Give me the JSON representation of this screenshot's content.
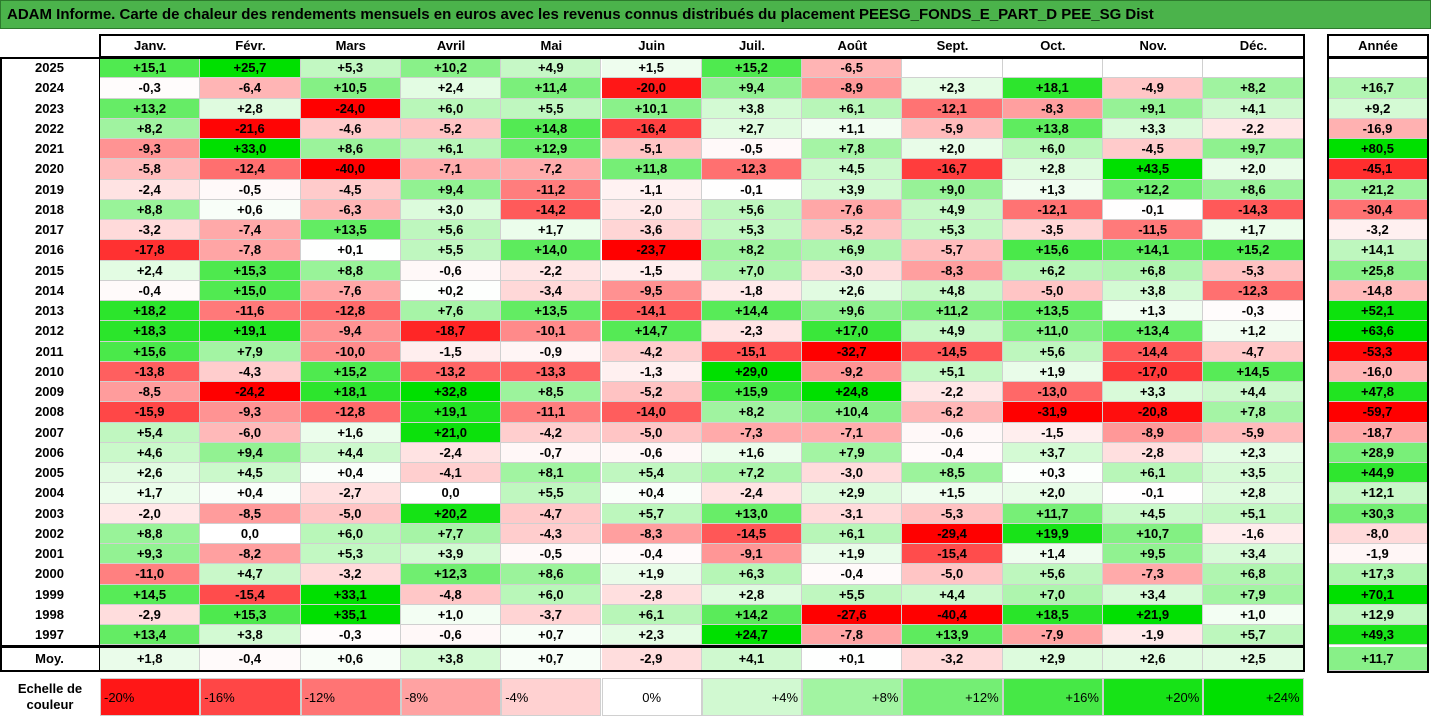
{
  "title": "ADAM Informe. Carte de chaleur des rendements mensuels en euros avec les revenus connus distribués du placement PEESG_FONDS_E_PART_D PEE_SG Dist",
  "chart_data": {
    "type": "heatmap",
    "columns": [
      "Janv.",
      "Févr.",
      "Mars",
      "Avril",
      "Mai",
      "Juin",
      "Juil.",
      "Août",
      "Sept.",
      "Oct.",
      "Nov.",
      "Déc."
    ],
    "annual_header": "Année",
    "rows": [
      {
        "year": "2025",
        "values": [
          "+15,1",
          "+25,7",
          "+5,3",
          "+10,2",
          "+4,9",
          "+1,5",
          "+15,2",
          "-6,5",
          "",
          "",
          "",
          ""
        ],
        "annual": ""
      },
      {
        "year": "2024",
        "values": [
          "-0,3",
          "-6,4",
          "+10,5",
          "+2,4",
          "+11,4",
          "-20,0",
          "+9,4",
          "-8,9",
          "+2,3",
          "+18,1",
          "-4,9",
          "+8,2"
        ],
        "annual": "+16,7"
      },
      {
        "year": "2023",
        "values": [
          "+13,2",
          "+2,8",
          "-24,0",
          "+6,0",
          "+5,5",
          "+10,1",
          "+3,8",
          "+6,1",
          "-12,1",
          "-8,3",
          "+9,1",
          "+4,1"
        ],
        "annual": "+9,2"
      },
      {
        "year": "2022",
        "values": [
          "+8,2",
          "-21,6",
          "-4,6",
          "-5,2",
          "+14,8",
          "-16,4",
          "+2,7",
          "+1,1",
          "-5,9",
          "+13,8",
          "+3,3",
          "-2,2"
        ],
        "annual": "-16,9"
      },
      {
        "year": "2021",
        "values": [
          "-9,3",
          "+33,0",
          "+8,6",
          "+6,1",
          "+12,9",
          "-5,1",
          "-0,5",
          "+7,8",
          "+2,0",
          "+6,0",
          "-4,5",
          "+9,7"
        ],
        "annual": "+80,5"
      },
      {
        "year": "2020",
        "values": [
          "-5,8",
          "-12,4",
          "-40,0",
          "-7,1",
          "-7,2",
          "+11,8",
          "-12,3",
          "+4,5",
          "-16,7",
          "+2,8",
          "+43,5",
          "+2,0"
        ],
        "annual": "-45,1"
      },
      {
        "year": "2019",
        "values": [
          "-2,4",
          "-0,5",
          "-4,5",
          "+9,4",
          "-11,2",
          "-1,1",
          "-0,1",
          "+3,9",
          "+9,0",
          "+1,3",
          "+12,2",
          "+8,6"
        ],
        "annual": "+21,2"
      },
      {
        "year": "2018",
        "values": [
          "+8,8",
          "+0,6",
          "-6,3",
          "+3,0",
          "-14,2",
          "-2,0",
          "+5,6",
          "-7,6",
          "+4,9",
          "-12,1",
          "-0,1",
          "-14,3"
        ],
        "annual": "-30,4"
      },
      {
        "year": "2017",
        "values": [
          "-3,2",
          "-7,4",
          "+13,5",
          "+5,6",
          "+1,7",
          "-3,6",
          "+5,3",
          "-5,2",
          "+5,3",
          "-3,5",
          "-11,5",
          "+1,7"
        ],
        "annual": "-3,2"
      },
      {
        "year": "2016",
        "values": [
          "-17,8",
          "-7,8",
          "+0,1",
          "+5,5",
          "+14,0",
          "-23,7",
          "+8,2",
          "+6,9",
          "-5,7",
          "+15,6",
          "+14,1",
          "+15,2"
        ],
        "annual": "+14,1"
      },
      {
        "year": "2015",
        "values": [
          "+2,4",
          "+15,3",
          "+8,8",
          "-0,6",
          "-2,2",
          "-1,5",
          "+7,0",
          "-3,0",
          "-8,3",
          "+6,2",
          "+6,8",
          "-5,3"
        ],
        "annual": "+25,8"
      },
      {
        "year": "2014",
        "values": [
          "-0,4",
          "+15,0",
          "-7,6",
          "+0,2",
          "-3,4",
          "-9,5",
          "-1,8",
          "+2,6",
          "+4,8",
          "-5,0",
          "+3,8",
          "-12,3"
        ],
        "annual": "-14,8"
      },
      {
        "year": "2013",
        "values": [
          "+18,2",
          "-11,6",
          "-12,8",
          "+7,6",
          "+13,5",
          "-14,1",
          "+14,4",
          "+9,6",
          "+11,2",
          "+13,5",
          "+1,3",
          "-0,3"
        ],
        "annual": "+52,1"
      },
      {
        "year": "2012",
        "values": [
          "+18,3",
          "+19,1",
          "-9,4",
          "-18,7",
          "-10,1",
          "+14,7",
          "-2,3",
          "+17,0",
          "+4,9",
          "+11,0",
          "+13,4",
          "+1,2"
        ],
        "annual": "+63,6"
      },
      {
        "year": "2011",
        "values": [
          "+15,6",
          "+7,9",
          "-10,0",
          "-1,5",
          "-0,9",
          "-4,2",
          "-15,1",
          "-32,7",
          "-14,5",
          "+5,6",
          "-14,4",
          "-4,7"
        ],
        "annual": "-53,3"
      },
      {
        "year": "2010",
        "values": [
          "-13,8",
          "-4,3",
          "+15,2",
          "-13,2",
          "-13,3",
          "-1,3",
          "+29,0",
          "-9,2",
          "+5,1",
          "+1,9",
          "-17,0",
          "+14,5"
        ],
        "annual": "-16,0"
      },
      {
        "year": "2009",
        "values": [
          "-8,5",
          "-24,2",
          "+18,1",
          "+32,8",
          "+8,5",
          "-5,2",
          "+15,9",
          "+24,8",
          "-2,2",
          "-13,0",
          "+3,3",
          "+4,4"
        ],
        "annual": "+47,8"
      },
      {
        "year": "2008",
        "values": [
          "-15,9",
          "-9,3",
          "-12,8",
          "+19,1",
          "-11,1",
          "-14,0",
          "+8,2",
          "+10,4",
          "-6,2",
          "-31,9",
          "-20,8",
          "+7,8"
        ],
        "annual": "-59,7"
      },
      {
        "year": "2007",
        "values": [
          "+5,4",
          "-6,0",
          "+1,6",
          "+21,0",
          "-4,2",
          "-5,0",
          "-7,3",
          "-7,1",
          "-0,6",
          "-1,5",
          "-8,9",
          "-5,9"
        ],
        "annual": "-18,7"
      },
      {
        "year": "2006",
        "values": [
          "+4,6",
          "+9,4",
          "+4,4",
          "-2,4",
          "-0,7",
          "-0,6",
          "+1,6",
          "+7,9",
          "-0,4",
          "+3,7",
          "-2,8",
          "+2,3"
        ],
        "annual": "+28,9"
      },
      {
        "year": "2005",
        "values": [
          "+2,6",
          "+4,5",
          "+0,4",
          "-4,1",
          "+8,1",
          "+5,4",
          "+7,2",
          "-3,0",
          "+8,5",
          "+0,3",
          "+6,1",
          "+3,5"
        ],
        "annual": "+44,9"
      },
      {
        "year": "2004",
        "values": [
          "+1,7",
          "+0,4",
          "-2,7",
          "0,0",
          "+5,5",
          "+0,4",
          "-2,4",
          "+2,9",
          "+1,5",
          "+2,0",
          "-0,1",
          "+2,8"
        ],
        "annual": "+12,1"
      },
      {
        "year": "2003",
        "values": [
          "-2,0",
          "-8,5",
          "-5,0",
          "+20,2",
          "-4,7",
          "+5,7",
          "+13,0",
          "-3,1",
          "-5,3",
          "+11,7",
          "+4,5",
          "+5,1"
        ],
        "annual": "+30,3"
      },
      {
        "year": "2002",
        "values": [
          "+8,8",
          "0,0",
          "+6,0",
          "+7,7",
          "-4,3",
          "-8,3",
          "-14,5",
          "+6,1",
          "-29,4",
          "+19,9",
          "+10,7",
          "-1,6"
        ],
        "annual": "-8,0"
      },
      {
        "year": "2001",
        "values": [
          "+9,3",
          "-8,2",
          "+5,3",
          "+3,9",
          "-0,5",
          "-0,4",
          "-9,1",
          "+1,9",
          "-15,4",
          "+1,4",
          "+9,5",
          "+3,4"
        ],
        "annual": "-1,9"
      },
      {
        "year": "2000",
        "values": [
          "-11,0",
          "+4,7",
          "-3,2",
          "+12,3",
          "+8,6",
          "+1,9",
          "+6,3",
          "-0,4",
          "-5,0",
          "+5,6",
          "-7,3",
          "+6,8"
        ],
        "annual": "+17,3"
      },
      {
        "year": "1999",
        "values": [
          "+14,5",
          "-15,4",
          "+33,1",
          "-4,8",
          "+6,0",
          "-2,8",
          "+2,8",
          "+5,5",
          "+4,4",
          "+7,0",
          "+3,4",
          "+7,9"
        ],
        "annual": "+70,1"
      },
      {
        "year": "1998",
        "values": [
          "-2,9",
          "+15,3",
          "+35,1",
          "+1,0",
          "-3,7",
          "+6,1",
          "+14,2",
          "-27,6",
          "-40,4",
          "+18,5",
          "+21,9",
          "+1,0"
        ],
        "annual": "+12,9"
      },
      {
        "year": "1997",
        "values": [
          "+13,4",
          "+3,8",
          "-0,3",
          "-0,6",
          "+0,7",
          "+2,3",
          "+24,7",
          "-7,8",
          "+13,9",
          "-7,9",
          "-1,9",
          "+5,7"
        ],
        "annual": "+49,3"
      }
    ],
    "average": {
      "label": "Moy.",
      "values": [
        "+1,8",
        "-0,4",
        "+0,6",
        "+3,8",
        "+0,7",
        "-2,9",
        "+4,1",
        "+0,1",
        "-3,2",
        "+2,9",
        "+2,6",
        "+2,5"
      ],
      "annual": "+11,7"
    },
    "scale": {
      "label_line1": "Echelle de",
      "label_line2": "couleur",
      "stops": [
        {
          "text": "-20%",
          "value": -20
        },
        {
          "text": "-16%",
          "value": -16
        },
        {
          "text": "-12%",
          "value": -12
        },
        {
          "text": "-8%",
          "value": -8
        },
        {
          "text": "-4%",
          "value": -4
        },
        {
          "text": "0%",
          "value": 0
        },
        {
          "text": "+4%",
          "value": 4
        },
        {
          "text": "+8%",
          "value": 8
        },
        {
          "text": "+12%",
          "value": 12
        },
        {
          "text": "+16%",
          "value": 16
        },
        {
          "text": "+20%",
          "value": 20
        },
        {
          "text": "+24%",
          "value": 24
        }
      ]
    },
    "colors": {
      "negative_max": "#ff0000",
      "positive_max": "#00e000",
      "neutral": "#ffffff",
      "title_bg": "#4bb34b"
    }
  }
}
